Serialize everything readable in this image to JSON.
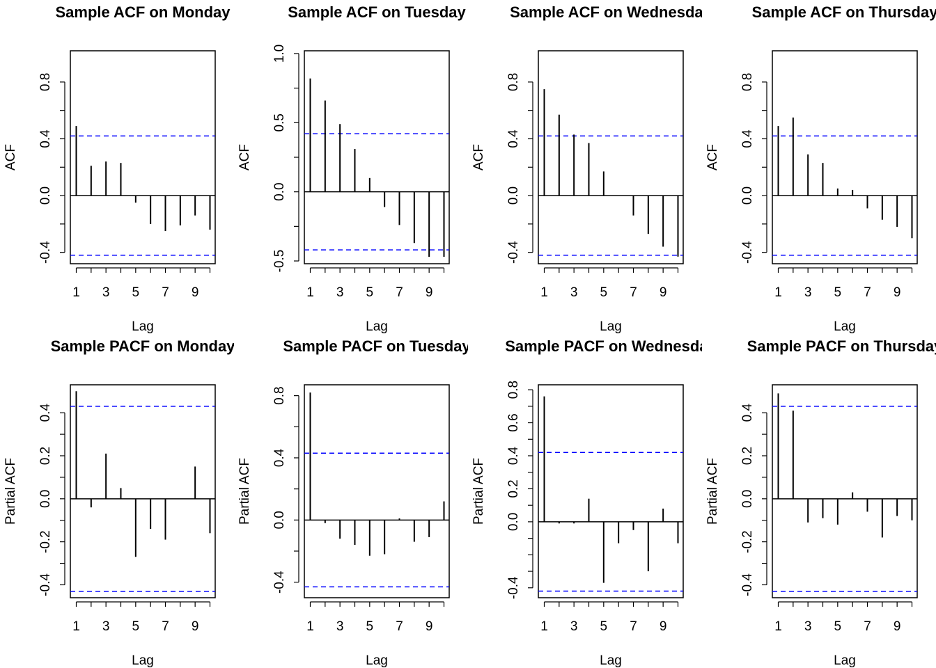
{
  "ci_color": "#0000ff",
  "chart_data": [
    {
      "type": "bar",
      "title": "Sample ACF on Monday",
      "xlabel": "Lag",
      "ylabel": "ACF",
      "x": [
        1,
        2,
        3,
        4,
        5,
        6,
        7,
        8,
        9,
        10
      ],
      "values": [
        0.49,
        0.21,
        0.24,
        0.23,
        -0.05,
        -0.2,
        -0.25,
        -0.21,
        -0.14,
        -0.24
      ],
      "ci": 0.42,
      "ylim": [
        -0.48,
        1.02
      ],
      "yticks": [
        -0.4,
        0.0,
        0.4,
        0.8
      ],
      "ytick_labels": [
        "-0.4",
        "0.0",
        "0.4",
        "0.8"
      ],
      "xticks": [
        1,
        3,
        5,
        7,
        9
      ],
      "xtick_labels": [
        "1",
        "3",
        "5",
        "7",
        "9"
      ]
    },
    {
      "type": "bar",
      "title": "Sample ACF on Tuesday",
      "xlabel": "Lag",
      "ylabel": "ACF",
      "x": [
        1,
        2,
        3,
        4,
        5,
        6,
        7,
        8,
        9,
        10
      ],
      "values": [
        0.82,
        0.66,
        0.49,
        0.31,
        0.1,
        -0.11,
        -0.24,
        -0.37,
        -0.47,
        -0.47
      ],
      "ci": 0.42,
      "ylim": [
        -0.52,
        1.02
      ],
      "yticks": [
        -0.5,
        0.0,
        0.5,
        1.0
      ],
      "ytick_labels": [
        "-0.5",
        "0.0",
        "0.5",
        "1.0"
      ],
      "xticks": [
        1,
        3,
        5,
        7,
        9
      ],
      "xtick_labels": [
        "1",
        "3",
        "5",
        "7",
        "9"
      ]
    },
    {
      "type": "bar",
      "title": "Sample ACF on Wednesday",
      "xlabel": "Lag",
      "ylabel": "ACF",
      "x": [
        1,
        2,
        3,
        4,
        5,
        6,
        7,
        8,
        9,
        10
      ],
      "values": [
        0.75,
        0.57,
        0.43,
        0.37,
        0.17,
        0.0,
        -0.14,
        -0.27,
        -0.36,
        -0.43
      ],
      "ci": 0.42,
      "ylim": [
        -0.48,
        1.02
      ],
      "yticks": [
        -0.4,
        0.0,
        0.4,
        0.8
      ],
      "ytick_labels": [
        "-0.4",
        "0.0",
        "0.4",
        "0.8"
      ],
      "xticks": [
        1,
        3,
        5,
        7,
        9
      ],
      "xtick_labels": [
        "1",
        "3",
        "5",
        "7",
        "9"
      ]
    },
    {
      "type": "bar",
      "title": "Sample ACF on Thursday",
      "xlabel": "Lag",
      "ylabel": "ACF",
      "x": [
        1,
        2,
        3,
        4,
        5,
        6,
        7,
        8,
        9,
        10
      ],
      "values": [
        0.49,
        0.55,
        0.29,
        0.23,
        0.05,
        0.04,
        -0.09,
        -0.17,
        -0.22,
        -0.3
      ],
      "ci": 0.42,
      "ylim": [
        -0.48,
        1.02
      ],
      "yticks": [
        -0.4,
        0.0,
        0.4,
        0.8
      ],
      "ytick_labels": [
        "-0.4",
        "0.0",
        "0.4",
        "0.8"
      ],
      "xticks": [
        1,
        3,
        5,
        7,
        9
      ],
      "xtick_labels": [
        "1",
        "3",
        "5",
        "7",
        "9"
      ]
    },
    {
      "type": "bar",
      "title": "Sample PACF on Monday",
      "xlabel": "Lag",
      "ylabel": "Partial ACF",
      "x": [
        1,
        2,
        3,
        4,
        5,
        6,
        7,
        8,
        9,
        10
      ],
      "values": [
        0.5,
        -0.04,
        0.21,
        0.05,
        -0.27,
        -0.14,
        -0.19,
        0.0,
        0.15,
        -0.16
      ],
      "ci": 0.43,
      "ylim": [
        -0.46,
        0.53
      ],
      "yticks": [
        -0.4,
        -0.2,
        0.0,
        0.2,
        0.4
      ],
      "ytick_labels": [
        "-0.4",
        "-0.2",
        "0.0",
        "0.2",
        "0.4"
      ],
      "xticks": [
        1,
        3,
        5,
        7,
        9
      ],
      "xtick_labels": [
        "1",
        "3",
        "5",
        "7",
        "9"
      ]
    },
    {
      "type": "bar",
      "title": "Sample PACF on Tuesday",
      "xlabel": "Lag",
      "ylabel": "Partial ACF",
      "x": [
        1,
        2,
        3,
        4,
        5,
        6,
        7,
        8,
        9,
        10
      ],
      "values": [
        0.82,
        -0.02,
        -0.12,
        -0.16,
        -0.23,
        -0.22,
        0.01,
        -0.14,
        -0.11,
        0.12
      ],
      "ci": 0.43,
      "ylim": [
        -0.5,
        0.87
      ],
      "yticks": [
        -0.4,
        0.0,
        0.4,
        0.8
      ],
      "ytick_labels": [
        "-0.4",
        "0.0",
        "0.4",
        "0.8"
      ],
      "xticks": [
        1,
        3,
        5,
        7,
        9
      ],
      "xtick_labels": [
        "1",
        "3",
        "5",
        "7",
        "9"
      ]
    },
    {
      "type": "bar",
      "title": "Sample PACF on Wednesday",
      "xlabel": "Lag",
      "ylabel": "Partial ACF",
      "x": [
        1,
        2,
        3,
        4,
        5,
        6,
        7,
        8,
        9,
        10
      ],
      "values": [
        0.76,
        -0.01,
        -0.01,
        0.14,
        -0.37,
        -0.13,
        -0.05,
        -0.3,
        0.08,
        -0.13
      ],
      "ci": 0.42,
      "ylim": [
        -0.46,
        0.83
      ],
      "yticks": [
        -0.4,
        -0.2,
        0.0,
        0.2,
        0.4,
        0.6,
        0.8
      ],
      "ytick_labels": [
        "-0.4",
        "",
        "0.0",
        "0.2",
        "0.4",
        "0.6",
        "0.8"
      ],
      "xticks": [
        1,
        3,
        5,
        7,
        9
      ],
      "xtick_labels": [
        "1",
        "3",
        "5",
        "7",
        "9"
      ]
    },
    {
      "type": "bar",
      "title": "Sample PACF on Thursday",
      "xlabel": "Lag",
      "ylabel": "Partial ACF",
      "x": [
        1,
        2,
        3,
        4,
        5,
        6,
        7,
        8,
        9,
        10
      ],
      "values": [
        0.49,
        0.41,
        -0.11,
        -0.09,
        -0.12,
        0.03,
        -0.06,
        -0.18,
        -0.08,
        -0.1
      ],
      "ci": 0.43,
      "ylim": [
        -0.46,
        0.53
      ],
      "yticks": [
        -0.4,
        -0.2,
        0.0,
        0.2,
        0.4
      ],
      "ytick_labels": [
        "-0.4",
        "-0.2",
        "0.0",
        "0.2",
        "0.4"
      ],
      "xticks": [
        1,
        3,
        5,
        7,
        9
      ],
      "xtick_labels": [
        "1",
        "3",
        "5",
        "7",
        "9"
      ]
    }
  ]
}
